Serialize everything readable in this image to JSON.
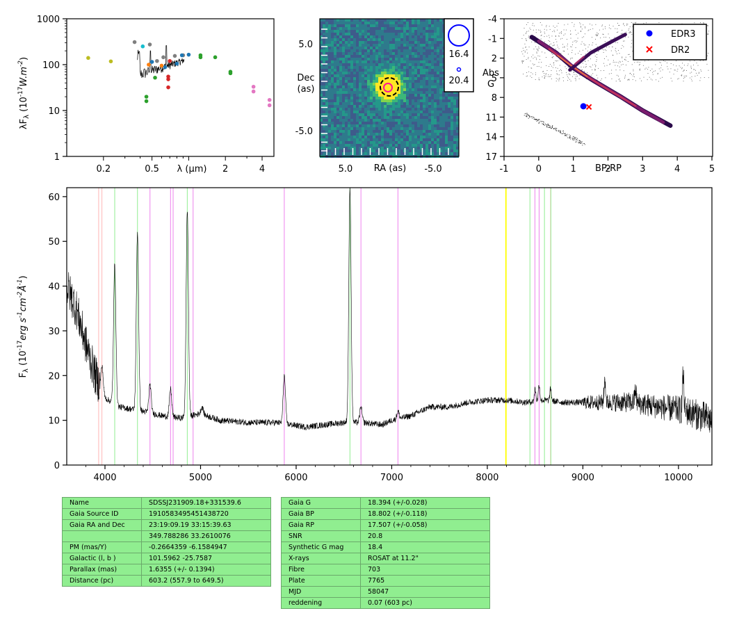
{
  "colors": {
    "spec_line": "#000000",
    "sed_line": "#000000",
    "edr3": "#0000ff",
    "dr2": "#ff0000",
    "table_bg": "#90ee90",
    "balmer": "#90ee90",
    "helium": "#ee82ee",
    "calcium": "#ffb6b6",
    "sodium": "#ffff00"
  },
  "chart_data": [
    {
      "type": "scatter",
      "title": "",
      "xlabel": "λ (μm)",
      "ylabel": "λF_λ (10^-17 W.m^-2)",
      "xscale": "log",
      "yscale": "log",
      "xlim": [
        0.1,
        5
      ],
      "ylim": [
        1,
        1000
      ],
      "x_ticklabels": [
        "0.2",
        "0.5",
        "2",
        "4"
      ],
      "y_ticklabels": [
        "1",
        "10",
        "100",
        "1000"
      ],
      "series": [
        {
          "color": "#bcbd22",
          "points": [
            [
              0.15,
              140
            ],
            [
              0.23,
              118
            ]
          ]
        },
        {
          "color": "#7f7f7f",
          "points": [
            [
              0.36,
              310
            ],
            [
              0.48,
              275
            ],
            [
              0.55,
              120
            ],
            [
              0.62,
              145
            ],
            [
              0.77,
              155
            ],
            [
              0.9,
              160
            ]
          ]
        },
        {
          "color": "#17becf",
          "points": [
            [
              0.42,
              250
            ]
          ]
        },
        {
          "color": "#ff7f0e",
          "points": [
            [
              0.47,
              100
            ],
            [
              0.6,
              95
            ]
          ]
        },
        {
          "color": "#1f77b4",
          "points": [
            [
              0.5,
              115
            ],
            [
              0.64,
              88
            ],
            [
              0.8,
              105
            ],
            [
              0.88,
              160
            ],
            [
              1.0,
              165
            ]
          ]
        },
        {
          "color": "#d62728",
          "points": [
            [
              0.68,
              55
            ],
            [
              0.68,
              48
            ],
            [
              0.68,
              32
            ],
            [
              0.7,
              120
            ]
          ]
        },
        {
          "color": "#2ca02c",
          "points": [
            [
              0.45,
              20
            ],
            [
              0.45,
              16
            ],
            [
              0.53,
              52
            ],
            [
              1.25,
              160
            ],
            [
              1.25,
              145
            ],
            [
              1.65,
              145
            ],
            [
              2.2,
              70
            ],
            [
              2.2,
              65
            ]
          ]
        },
        {
          "color": "#e377c2",
          "points": [
            [
              3.4,
              33
            ],
            [
              3.4,
              26
            ],
            [
              4.6,
              17
            ],
            [
              4.6,
              13
            ]
          ]
        }
      ]
    },
    {
      "type": "heatmap",
      "title": "",
      "xlabel": "RA (as)",
      "ylabel": "Dec (as)",
      "x_ticklabels": [
        "5.0",
        "-5.0"
      ],
      "y_ticklabels": [
        "5.0",
        "-5.0"
      ],
      "legend": [
        "16.4",
        "20.4"
      ],
      "source_position": [
        0.0,
        0.0
      ]
    },
    {
      "type": "scatter",
      "title": "",
      "xlabel": "BP-RP",
      "ylabel": "Abs G",
      "xlim": [
        -1,
        5
      ],
      "ylim": [
        17,
        -4
      ],
      "x_ticklabels": [
        "-1",
        "0",
        "1",
        "2",
        "3",
        "4",
        "5"
      ],
      "y_ticklabels": [
        "-4",
        "-1",
        "2",
        "5",
        "8",
        "11",
        "14",
        "17"
      ],
      "legend_position": "top-right",
      "series": [
        {
          "name": "EDR3",
          "color": "#0000ff",
          "marker": "circle",
          "x": [
            1.29
          ],
          "y": [
            9.35
          ]
        },
        {
          "name": "DR2",
          "color": "#ff0000",
          "marker": "x",
          "x": [
            1.45
          ],
          "y": [
            9.45
          ]
        }
      ]
    },
    {
      "type": "line",
      "title": "",
      "xlabel": "",
      "ylabel": "F_λ (10^-17 erg s^-1 cm^-2 Å^-1)",
      "xlim": [
        3600,
        10350
      ],
      "ylim": [
        0,
        62
      ],
      "x_ticklabels": [
        "4000",
        "5000",
        "6000",
        "7000",
        "8000",
        "9000",
        "10000"
      ],
      "y_ticklabels": [
        "0",
        "10",
        "20",
        "30",
        "40",
        "50",
        "60"
      ],
      "reference_lines": [
        {
          "x": 3934,
          "color": "#ffb6b6"
        },
        {
          "x": 3968,
          "color": "#ffb6b6"
        },
        {
          "x": 4102,
          "color": "#90ee90"
        },
        {
          "x": 4340,
          "color": "#90ee90"
        },
        {
          "x": 4471,
          "color": "#ee82ee"
        },
        {
          "x": 4686,
          "color": "#ee82ee"
        },
        {
          "x": 4713,
          "color": "#ee82ee"
        },
        {
          "x": 4861,
          "color": "#90ee90"
        },
        {
          "x": 4922,
          "color": "#ee82ee"
        },
        {
          "x": 5876,
          "color": "#ee82ee"
        },
        {
          "x": 6563,
          "color": "#90ee90"
        },
        {
          "x": 6678,
          "color": "#ee82ee"
        },
        {
          "x": 7065,
          "color": "#ee82ee"
        },
        {
          "x": 8195,
          "color": "#ffff00"
        },
        {
          "x": 8446,
          "color": "#90ee90"
        },
        {
          "x": 8498,
          "color": "#ee82ee"
        },
        {
          "x": 8542,
          "color": "#ee82ee"
        },
        {
          "x": 8598,
          "color": "#90ee90"
        },
        {
          "x": 8662,
          "color": "#ffb6b6"
        },
        {
          "x": 8665,
          "color": "#90ee90"
        }
      ],
      "continuum_points": [
        [
          3600,
          40
        ],
        [
          3700,
          35
        ],
        [
          3800,
          27
        ],
        [
          3900,
          20
        ],
        [
          4000,
          15
        ],
        [
          4150,
          13
        ],
        [
          4400,
          12
        ],
        [
          4600,
          11
        ],
        [
          4800,
          10.5
        ],
        [
          5000,
          11.5
        ],
        [
          5200,
          10
        ],
        [
          5500,
          9.5
        ],
        [
          5800,
          9.5
        ],
        [
          6100,
          8.5
        ],
        [
          6300,
          9
        ],
        [
          6500,
          9.5
        ],
        [
          6700,
          9.5
        ],
        [
          6900,
          9
        ],
        [
          7000,
          10
        ],
        [
          7200,
          11
        ],
        [
          7400,
          13
        ],
        [
          7600,
          13
        ],
        [
          7800,
          14
        ],
        [
          8000,
          14.5
        ],
        [
          8200,
          14.5
        ],
        [
          8400,
          14
        ],
        [
          8600,
          14.5
        ],
        [
          8800,
          14
        ],
        [
          9000,
          14
        ],
        [
          9200,
          14
        ],
        [
          9500,
          14
        ],
        [
          9800,
          13
        ],
        [
          10100,
          12
        ],
        [
          10350,
          10
        ]
      ],
      "emission_peaks": [
        [
          3970,
          22
        ],
        [
          4102,
          45
        ],
        [
          4340,
          52
        ],
        [
          4471,
          18
        ],
        [
          4686,
          17
        ],
        [
          4861,
          57
        ],
        [
          5016,
          13
        ],
        [
          5876,
          20
        ],
        [
          6563,
          62
        ],
        [
          6678,
          13
        ],
        [
          7065,
          12
        ],
        [
          8500,
          17
        ],
        [
          8542,
          18
        ],
        [
          8662,
          17
        ],
        [
          9230,
          19
        ],
        [
          9550,
          17
        ],
        [
          10049,
          20
        ]
      ]
    }
  ],
  "table_left": [
    [
      "Name",
      "SDSSJ231909.18+331539.6"
    ],
    [
      "Gaia Source ID",
      "1910583495451438720"
    ],
    [
      "Gaia RA and Dec",
      "23:19:09.19     33:15:39.63"
    ],
    [
      "",
      "349.788286     33.2610076"
    ],
    [
      "PM (mas/Y)",
      "-0.2664359     -6.1584947"
    ],
    [
      "Galactic (l, b )",
      "101.5962     -25.7587"
    ],
    [
      "Parallax (mas)",
      "1.6355 (+/- 0.1394)"
    ],
    [
      "Distance (pc)",
      "603.2 (557.9 to 649.5)"
    ]
  ],
  "table_right": [
    [
      "Gaia G",
      "18.394 (+/-0.028)"
    ],
    [
      "Gaia BP",
      "18.802 (+/-0.118)"
    ],
    [
      "Gaia RP",
      "17.507 (+/-0.058)"
    ],
    [
      "SNR",
      "20.8"
    ],
    [
      "Synthetic G mag",
      "18.4"
    ],
    [
      "X-rays",
      "ROSAT at 11.2\""
    ],
    [
      "Fibre",
      "703"
    ],
    [
      "Plate",
      "7765"
    ],
    [
      "MJD",
      "58047"
    ],
    [
      "reddening",
      "0.07 (603 pc)"
    ]
  ]
}
